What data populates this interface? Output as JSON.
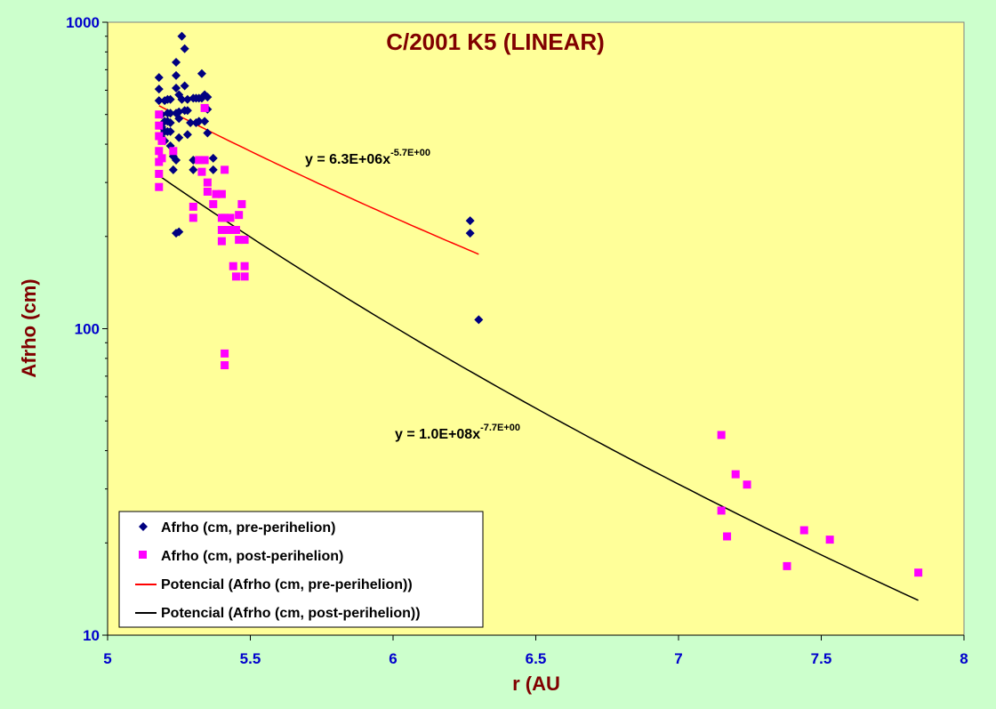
{
  "chart_data": {
    "type": "scatter",
    "title": "C/2001 K5 (LINEAR)",
    "xlabel": "r (AU",
    "ylabel": "Afrho (cm)",
    "xlim": [
      5,
      8
    ],
    "ylim": [
      10,
      1000
    ],
    "yscale": "log",
    "x_ticks": [
      "5",
      "5.5",
      "6",
      "6.5",
      "7",
      "7.5",
      "8"
    ],
    "y_ticks": [
      "10",
      "100",
      "1000"
    ],
    "grid": false,
    "legend_position": "bottom-left",
    "colors": {
      "plot_background": "#ffff99",
      "outer_background": "#ccffcc",
      "pre_perihelion": "#000080",
      "post_perihelion": "#ff00ff",
      "fit_pre": "#ff0000",
      "fit_post": "#000000",
      "tick_labels": "#0000cc",
      "titles": "#800000"
    },
    "series": [
      {
        "name": "Afrho (cm, pre-perihelion)",
        "marker": "diamond",
        "points": [
          [
            5.18,
            660
          ],
          [
            5.18,
            605
          ],
          [
            5.18,
            555
          ],
          [
            5.19,
            500
          ],
          [
            5.19,
            455
          ],
          [
            5.19,
            420
          ],
          [
            5.2,
            555
          ],
          [
            5.2,
            475
          ],
          [
            5.2,
            440
          ],
          [
            5.2,
            410
          ],
          [
            5.21,
            560
          ],
          [
            5.21,
            505
          ],
          [
            5.21,
            475
          ],
          [
            5.21,
            440
          ],
          [
            5.22,
            560
          ],
          [
            5.22,
            505
          ],
          [
            5.22,
            470
          ],
          [
            5.22,
            440
          ],
          [
            5.22,
            395
          ],
          [
            5.23,
            365
          ],
          [
            5.23,
            330
          ],
          [
            5.24,
            740
          ],
          [
            5.24,
            670
          ],
          [
            5.24,
            610
          ],
          [
            5.24,
            505
          ],
          [
            5.24,
            355
          ],
          [
            5.24,
            205
          ],
          [
            5.25,
            580
          ],
          [
            5.25,
            510
          ],
          [
            5.25,
            485
          ],
          [
            5.25,
            420
          ],
          [
            5.25,
            207
          ],
          [
            5.26,
            900
          ],
          [
            5.26,
            560
          ],
          [
            5.27,
            820
          ],
          [
            5.27,
            620
          ],
          [
            5.27,
            515
          ],
          [
            5.28,
            560
          ],
          [
            5.28,
            515
          ],
          [
            5.28,
            430
          ],
          [
            5.29,
            470
          ],
          [
            5.3,
            565
          ],
          [
            5.3,
            355
          ],
          [
            5.3,
            330
          ],
          [
            5.31,
            565
          ],
          [
            5.31,
            470
          ],
          [
            5.32,
            565
          ],
          [
            5.32,
            475
          ],
          [
            5.33,
            680
          ],
          [
            5.33,
            565
          ],
          [
            5.34,
            580
          ],
          [
            5.34,
            475
          ],
          [
            5.35,
            570
          ],
          [
            5.35,
            520
          ],
          [
            5.35,
            435
          ],
          [
            5.37,
            360
          ],
          [
            5.37,
            330
          ],
          [
            6.27,
            225
          ],
          [
            6.27,
            205
          ],
          [
            6.3,
            107
          ]
        ]
      },
      {
        "name": "Afrho (cm, post-perihelion)",
        "marker": "square",
        "points": [
          [
            5.18,
            500
          ],
          [
            5.18,
            460
          ],
          [
            5.18,
            425
          ],
          [
            5.18,
            380
          ],
          [
            5.18,
            350
          ],
          [
            5.18,
            320
          ],
          [
            5.18,
            290
          ],
          [
            5.19,
            410
          ],
          [
            5.19,
            360
          ],
          [
            5.23,
            380
          ],
          [
            5.3,
            250
          ],
          [
            5.3,
            230
          ],
          [
            5.32,
            355
          ],
          [
            5.33,
            325
          ],
          [
            5.34,
            355
          ],
          [
            5.34,
            525
          ],
          [
            5.35,
            300
          ],
          [
            5.35,
            280
          ],
          [
            5.37,
            255
          ],
          [
            5.38,
            275
          ],
          [
            5.4,
            275
          ],
          [
            5.4,
            230
          ],
          [
            5.4,
            210
          ],
          [
            5.4,
            193
          ],
          [
            5.41,
            330
          ],
          [
            5.41,
            230
          ],
          [
            5.41,
            83
          ],
          [
            5.41,
            76
          ],
          [
            5.42,
            210
          ],
          [
            5.43,
            230
          ],
          [
            5.43,
            210
          ],
          [
            5.44,
            160
          ],
          [
            5.45,
            210
          ],
          [
            5.45,
            148
          ],
          [
            5.46,
            235
          ],
          [
            5.46,
            195
          ],
          [
            5.47,
            255
          ],
          [
            5.48,
            195
          ],
          [
            5.48,
            160
          ],
          [
            5.48,
            148
          ],
          [
            7.15,
            45
          ],
          [
            7.15,
            25.5
          ],
          [
            7.17,
            21
          ],
          [
            7.2,
            33.5
          ],
          [
            7.24,
            31
          ],
          [
            7.38,
            16.8
          ],
          [
            7.44,
            22
          ],
          [
            7.53,
            20.5
          ],
          [
            7.84,
            16
          ]
        ]
      },
      {
        "name": "Potencial (Afrho (cm, pre-perihelion))",
        "type": "line",
        "fit": {
          "a": 6300000,
          "b": -5.7
        },
        "equation": "y = 6.3E+06x",
        "exponent": "-5.7E+00",
        "x_range": [
          5.18,
          6.3
        ]
      },
      {
        "name": "Potencial (Afrho (cm, post-perihelion))",
        "type": "line",
        "fit": {
          "a": 100000000,
          "b": -7.7
        },
        "equation": "y = 1.0E+08x",
        "exponent": "-7.7E+00",
        "x_range": [
          5.18,
          7.84
        ]
      }
    ]
  }
}
